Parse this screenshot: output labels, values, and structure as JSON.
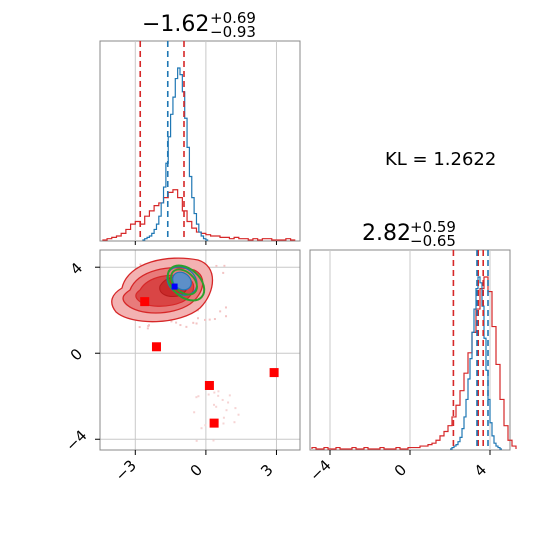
{
  "chart_data": [
    {
      "panel": "marginal-1",
      "type": "histogram",
      "title_main": "−1.62",
      "title_sup": "+0.69",
      "title_sub": "−0.93",
      "xlim": [
        -4.5,
        4.0
      ],
      "grid": true,
      "blue_hist": {
        "color": "#1f77b4",
        "bin_start": -2.7,
        "bin_width": 0.1,
        "values": [
          0,
          1,
          2,
          3,
          5,
          8,
          12,
          18,
          28,
          40,
          58,
          78,
          95,
          108,
          122,
          130,
          125,
          112,
          92,
          70,
          48,
          32,
          20,
          12,
          6,
          3,
          1,
          0
        ]
      },
      "red_hist": {
        "color": "#d62728",
        "bin_start": -4.4,
        "bin_width": 0.2,
        "values": [
          0,
          1,
          2,
          3,
          5,
          8,
          12,
          14,
          12,
          18,
          22,
          26,
          28,
          32,
          36,
          38,
          32,
          22,
          14,
          9,
          6,
          5,
          4,
          3,
          3,
          2,
          2,
          1,
          2,
          1,
          1,
          0,
          1,
          0,
          1,
          1,
          0,
          0,
          0,
          1,
          0
        ]
      },
      "blue_lines": [
        -1.62
      ],
      "red_lines": [
        -2.79,
        -0.93
      ]
    },
    {
      "panel": "marginal-2",
      "type": "histogram",
      "title_main": "2.82",
      "title_sup": "+0.59",
      "title_sub": "−0.65",
      "xlim": [
        -5.0,
        5.0
      ],
      "xticks": [
        "−4",
        "0",
        "4"
      ],
      "grid": true,
      "blue_hist": {
        "color": "#1f77b4",
        "bin_start": 2.0,
        "bin_width": 0.1,
        "values": [
          0,
          1,
          2,
          3,
          5,
          8,
          14,
          22,
          34,
          48,
          62,
          80,
          96,
          110,
          118,
          114,
          98,
          76,
          54,
          34,
          18,
          9,
          4,
          2,
          1,
          0
        ]
      },
      "red_hist": {
        "color": "#d62728",
        "bin_start": -4.9,
        "bin_width": 0.2,
        "values": [
          1,
          0,
          0,
          1,
          0,
          0,
          1,
          0,
          0,
          0,
          1,
          0,
          0,
          1,
          0,
          0,
          0,
          1,
          0,
          0,
          0,
          1,
          0,
          0,
          1,
          1,
          1,
          2,
          2,
          3,
          4,
          6,
          9,
          12,
          16,
          22,
          30,
          40,
          52,
          66,
          80,
          96,
          110,
          118,
          108,
          84,
          58,
          34,
          16,
          6,
          2
        ]
      },
      "blue_lines": [
        3.35,
        3.9
      ],
      "red_lines": [
        2.17,
        3.41,
        3.66
      ]
    },
    {
      "panel": "joint",
      "type": "contour",
      "xlim": [
        -4.5,
        4.0
      ],
      "ylim": [
        -4.5,
        4.8
      ],
      "xticks": [
        "−3",
        "0",
        "3"
      ],
      "yticks": [
        "−4",
        "0",
        "4"
      ],
      "grid": true,
      "markers": [
        {
          "x": -2.6,
          "y": 2.4
        },
        {
          "x": -2.1,
          "y": 0.3
        },
        {
          "x": 0.15,
          "y": -1.5
        },
        {
          "x": 2.9,
          "y": -0.9
        },
        {
          "x": 0.35,
          "y": -3.25
        }
      ],
      "blue_center": {
        "x": -1.33,
        "y": 3.1
      },
      "colors": {
        "red": "#d62728",
        "blue": "#1f77b4",
        "green": "#2ca02c",
        "marker": "#ff0000"
      }
    }
  ],
  "kl_label": "KL = 1.2622"
}
